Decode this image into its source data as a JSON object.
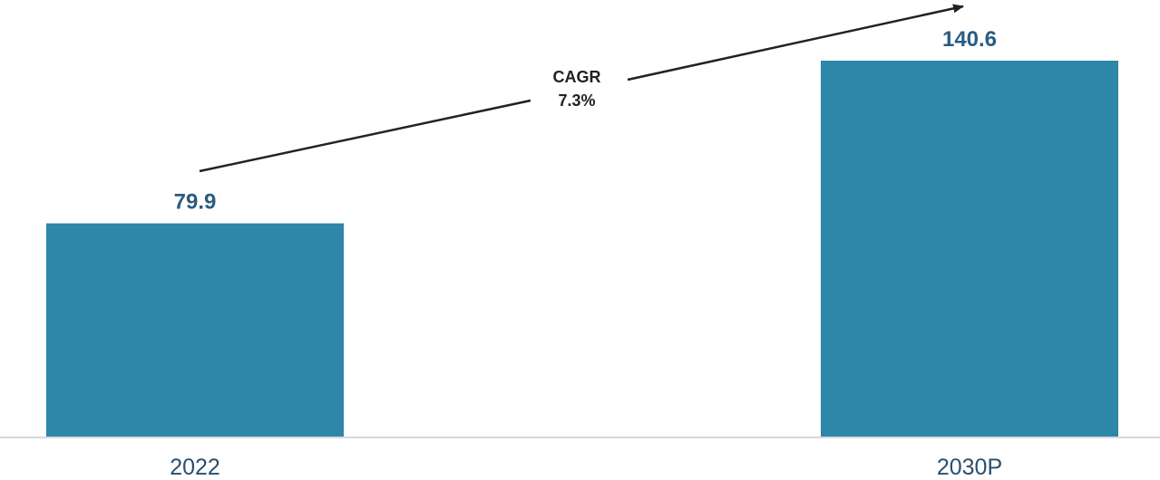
{
  "chart_data": {
    "type": "bar",
    "categories": [
      "2022",
      "2030P"
    ],
    "values": [
      79.9,
      140.6
    ],
    "value_labels": [
      "79.9",
      "140.6"
    ],
    "annotation": {
      "label": "CAGR",
      "value": "7.3%"
    },
    "colors": {
      "bar": "#2e86a9",
      "value_label": "#2a5c82",
      "axis_label": "#2a4e6e",
      "annotation": "#222222",
      "axis_line": "#d8d8d8"
    },
    "grid": false,
    "legend": "none"
  }
}
